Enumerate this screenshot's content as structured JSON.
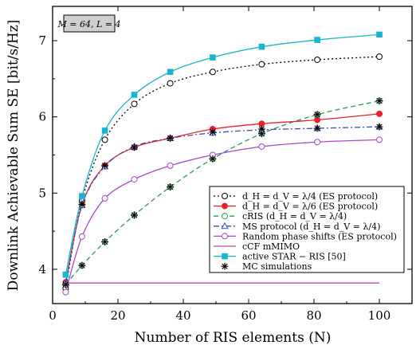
{
  "chart_data": {
    "type": "line",
    "title": "",
    "parameter_box": "M = 64, L = 4",
    "xlabel": "Number of RIS elements (N)",
    "ylabel": "Downlink Achievable Sum SE [bit/s/Hz]",
    "xlim": [
      0,
      110
    ],
    "ylim": [
      3.55,
      7.45
    ],
    "xticks": [
      0,
      20,
      40,
      60,
      80,
      100
    ],
    "yticks": [
      4,
      5,
      6,
      7
    ],
    "grid": false,
    "legend_position": "bottom-right",
    "x": [
      4,
      9,
      16,
      25,
      36,
      49,
      64,
      81,
      100
    ],
    "series": [
      {
        "name": "d_H = d_V = λ/4 (ES protocol)",
        "color": "#000000",
        "line": "dotted",
        "marker": "open-circle",
        "values": [
          3.75,
          4.9,
          5.7,
          6.17,
          6.44,
          6.59,
          6.69,
          6.75,
          6.79
        ]
      },
      {
        "name": "d_H = d_V = λ/6 (ES protocol)",
        "color": "#e8202a",
        "line": "solid",
        "marker": "filled-circle",
        "values": [
          3.83,
          4.85,
          5.36,
          5.6,
          5.72,
          5.84,
          5.91,
          5.96,
          6.04
        ]
      },
      {
        "name": "cRIS (d_H = d_V = λ/4)",
        "color": "#2a9a4e",
        "line": "dashed",
        "marker": "open-circle",
        "values": [
          3.8,
          4.05,
          4.36,
          4.71,
          5.08,
          5.45,
          5.78,
          6.03,
          6.21
        ]
      },
      {
        "name": "MS protocol (d_H = d_V = λ/4)",
        "color": "#3a4fb0",
        "line": "dashdot",
        "marker": "open-triangle",
        "values": [
          3.82,
          4.84,
          5.35,
          5.61,
          5.72,
          5.79,
          5.83,
          5.85,
          5.87
        ]
      },
      {
        "name": "Random phase shifts (ES protocol)",
        "color": "#a64ac9",
        "line": "solid",
        "marker": "open-circle",
        "values": [
          3.7,
          4.43,
          4.93,
          5.18,
          5.36,
          5.5,
          5.61,
          5.67,
          5.7
        ]
      },
      {
        "name": "cCF mMIMO",
        "color": "#c04aa0",
        "line": "solid",
        "marker": "none",
        "values": [
          3.82,
          3.82,
          3.82,
          3.82,
          3.82,
          3.82,
          3.82,
          3.82,
          3.82
        ]
      },
      {
        "name": "active STAR − RIS [50]",
        "color": "#19b4cf",
        "line": "solid",
        "marker": "filled-square",
        "values": [
          3.93,
          4.96,
          5.82,
          6.29,
          6.59,
          6.78,
          6.92,
          7.01,
          7.08
        ]
      },
      {
        "name": "MC simulations",
        "color": "#000000",
        "line": "none",
        "marker": "asterisk",
        "values": [
          3.8,
          4.85,
          5.36,
          5.6,
          5.72,
          5.8,
          5.84,
          5.85,
          5.87
        ]
      }
    ],
    "mc_extra_points": [
      {
        "x": 9,
        "y": 4.05
      },
      {
        "x": 16,
        "y": 4.36
      },
      {
        "x": 25,
        "y": 4.71
      },
      {
        "x": 36,
        "y": 5.08
      },
      {
        "x": 49,
        "y": 5.45
      },
      {
        "x": 64,
        "y": 5.78
      },
      {
        "x": 81,
        "y": 6.03
      },
      {
        "x": 100,
        "y": 6.21
      }
    ]
  }
}
